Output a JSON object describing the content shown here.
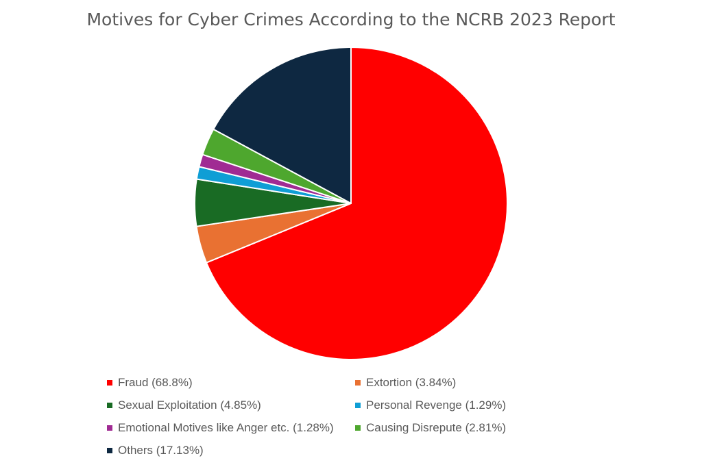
{
  "chart_data": {
    "type": "pie",
    "title": "Motives for Cyber Crimes According to the NCRB 2023 Report",
    "start_angle_deg": 0,
    "direction": "clockwise",
    "slices": [
      {
        "label": "Fraud (68.8%)",
        "value": 68.8,
        "color": "#ff0000"
      },
      {
        "label": "Extortion (3.84%)",
        "value": 3.84,
        "color": "#e97132"
      },
      {
        "label": "Sexual Exploitation (4.85%)",
        "value": 4.85,
        "color": "#196b24"
      },
      {
        "label": "Personal Revenge (1.29%)",
        "value": 1.29,
        "color": "#0f9ed5"
      },
      {
        "label": "Emotional Motives like Anger etc. (1.28%)",
        "value": 1.28,
        "color": "#a02b93"
      },
      {
        "label": "Causing Disrepute (2.81%)",
        "value": 2.81,
        "color": "#4ea72e"
      },
      {
        "label": "Others (17.13%)",
        "value": 17.13,
        "color": "#0e2841"
      }
    ],
    "legend_position": "bottom"
  }
}
